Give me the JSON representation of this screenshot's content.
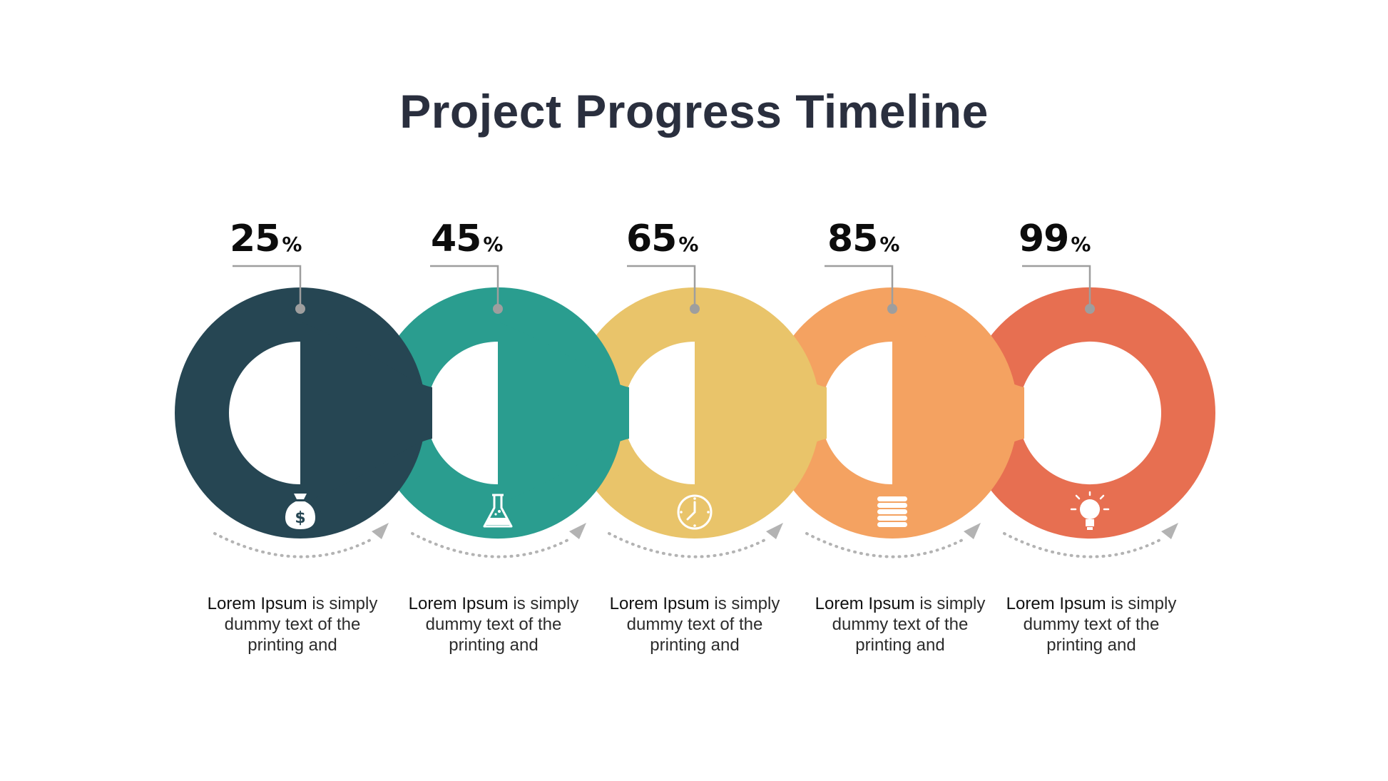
{
  "title": "Project Progress Timeline",
  "colors": {
    "title": "#2a2f3e",
    "connector": "#9e9e9e",
    "arrow": "#b3b3b3"
  },
  "steps": [
    {
      "percent": "25",
      "unit": "%",
      "progress": 0.25,
      "color": "#264653",
      "icon": "money-bag-icon",
      "desc_lead": "Lorem Ipsum",
      "desc_rest": " is simply dummy text of the printing and"
    },
    {
      "percent": "45",
      "unit": "%",
      "progress": 0.45,
      "color": "#2a9d8f",
      "icon": "flask-icon",
      "desc_lead": "Lorem Ipsum",
      "desc_rest": " is simply dummy text of the printing and"
    },
    {
      "percent": "65",
      "unit": "%",
      "progress": 0.65,
      "color": "#e9c46a",
      "icon": "clock-icon",
      "desc_lead": "Lorem Ipsum",
      "desc_rest": " is simply dummy text of the printing and"
    },
    {
      "percent": "85",
      "unit": "%",
      "progress": 0.85,
      "color": "#f4a261",
      "icon": "coin-stack-icon",
      "desc_lead": "Lorem Ipsum",
      "desc_rest": " is simply dummy text of the printing and"
    },
    {
      "percent": "99",
      "unit": "%",
      "progress": 0.99,
      "color": "#e76f51",
      "icon": "lightbulb-icon",
      "desc_lead": "Lorem Ipsum",
      "desc_rest": " is simply dummy text of the printing and"
    }
  ]
}
